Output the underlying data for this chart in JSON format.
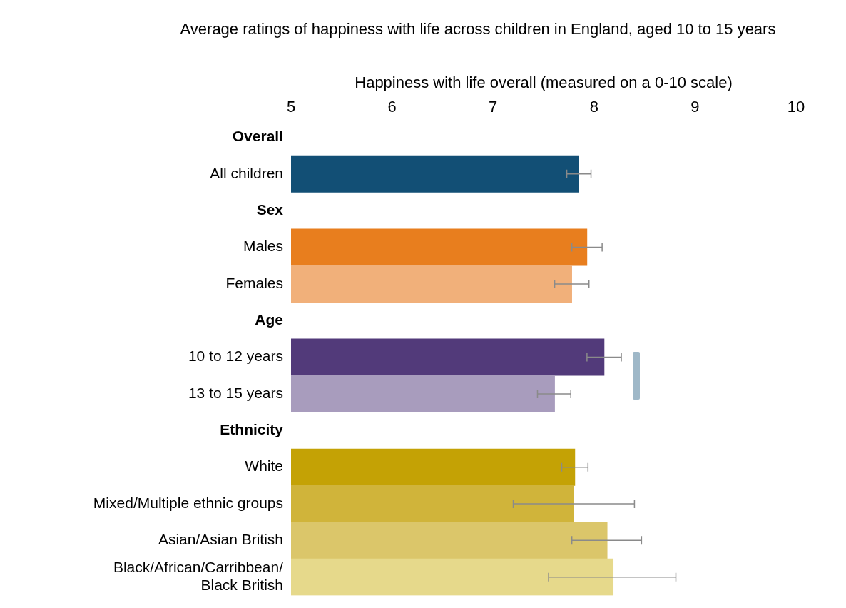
{
  "chart_data": {
    "type": "bar",
    "orientation": "horizontal",
    "title": "Average ratings of happiness with life across children in England, aged 10 to 15 years",
    "xlabel": "Happiness with life overall (measured on a 0-10 scale)",
    "categories": [
      "Overall",
      "All children",
      "Sex",
      "Males",
      "Females",
      "Age",
      "10 to 12 years",
      "13 to 15 years",
      "Ethnicity",
      "White",
      "Mixed/Multiple ethnic groups",
      "Asian/Asian British",
      "Black/African/Carribbean/ Black British"
    ],
    "values": [
      null,
      7.85,
      null,
      7.93,
      7.78,
      null,
      8.1,
      7.61,
      null,
      7.81,
      7.8,
      8.13,
      8.19
    ],
    "colors": [
      "#ffffff",
      "#124f75",
      "#ffffff",
      "#e87e1e",
      "#f1b07a",
      "#ffffff",
      "#523a7a",
      "#a89cbd",
      "#ffffff",
      "#c4a205",
      "#d0b43a",
      "#dbc66a",
      "#e6d98b"
    ],
    "errors": [
      null,
      [
        7.73,
        7.97
      ],
      null,
      [
        7.78,
        8.08
      ],
      [
        7.61,
        7.95
      ],
      null,
      [
        7.93,
        8.27
      ],
      [
        7.44,
        7.77
      ],
      null,
      [
        7.68,
        7.94
      ],
      [
        7.2,
        8.4
      ],
      [
        7.78,
        8.47
      ],
      [
        7.55,
        8.81
      ]
    ],
    "xlim": [
      5,
      10
    ],
    "xticks": [
      5,
      6,
      7,
      8,
      9,
      10
    ],
    "grid": false,
    "legend": false
  }
}
